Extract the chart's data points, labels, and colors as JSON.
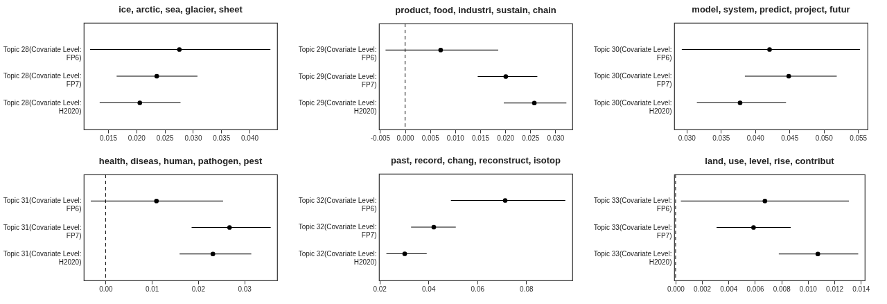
{
  "chart_data": [
    {
      "type": "scatter",
      "orientation": "horizontal",
      "title": "ice, arctic, sea, glacier, sheet",
      "categories": [
        "Topic 28(Covariate Level: FP6)",
        "Topic 28(Covariate Level: FP7)",
        "Topic 28(Covariate Level: H2020)"
      ],
      "values": [
        0.0276,
        0.0236,
        0.0206
      ],
      "errors": [
        [
          0.0118,
          0.0437
        ],
        [
          0.0165,
          0.0308
        ],
        [
          0.0135,
          0.0278
        ]
      ],
      "color": "#000000",
      "marker": "circle",
      "xlim": [
        0.0107,
        0.0449
      ],
      "xticks": [
        0.015,
        {
          "value": 0.02,
          "label": "0.020"
        },
        0.025,
        {
          "value": 0.03,
          "label": "0.030"
        },
        0.035,
        {
          "value": 0.04,
          "label": "0.040"
        }
      ]
    },
    {
      "type": "scatter",
      "orientation": "horizontal",
      "title": "product, food, industri, sustain, chain",
      "categories": [
        "Topic 29(Covariate Level: FP6)",
        "Topic 29(Covariate Level: FP7)",
        "Topic 29(Covariate Level: H2020)"
      ],
      "values": [
        0.0071,
        0.0201,
        0.0258
      ],
      "errors": [
        [
          -0.0039,
          0.0186
        ],
        [
          0.0145,
          0.0264
        ],
        [
          0.0197,
          0.0322
        ]
      ],
      "color": "#000000",
      "marker": "circle",
      "xlim": [
        -0.0052,
        0.0334
      ],
      "xticks": [
        -0.005,
        {
          "value": 0,
          "label": "0.000"
        },
        0.005,
        {
          "value": 0.01,
          "label": "0.010"
        },
        0.015,
        {
          "value": 0.02,
          "label": "0.020"
        },
        0.025,
        {
          "value": 0.03,
          "label": "0.030"
        }
      ],
      "ref_lines": [
        {
          "axis": "x",
          "value": 0,
          "line_style": "dashed"
        }
      ]
    },
    {
      "type": "scatter",
      "orientation": "horizontal",
      "title": "model, system, predict, project, futur",
      "categories": [
        "Topic 30(Covariate Level: FP6)",
        "Topic 30(Covariate Level: FP7)",
        "Topic 30(Covariate Level: H2020)"
      ],
      "values": [
        0.0421,
        0.0449,
        0.0378
      ],
      "errors": [
        [
          0.0293,
          0.0553
        ],
        [
          0.0385,
          0.0519
        ],
        [
          0.0315,
          0.0445
        ]
      ],
      "color": "#000000",
      "marker": "circle",
      "xlim": [
        0.0282,
        0.0564
      ],
      "xticks": [
        {
          "value": 0.03,
          "label": "0.030"
        },
        0.035,
        {
          "value": 0.04,
          "label": "0.040"
        },
        0.045,
        {
          "value": 0.05,
          "label": "0.050"
        },
        0.055
      ]
    },
    {
      "type": "scatter",
      "orientation": "horizontal",
      "title": "health, diseas, human, pathogen, pest",
      "categories": [
        "Topic 31(Covariate Level: FP6)",
        "Topic 31(Covariate Level: FP7)",
        "Topic 31(Covariate Level: H2020)"
      ],
      "values": [
        0.011,
        0.0268,
        0.0232
      ],
      "errors": [
        [
          -0.0032,
          0.0254
        ],
        [
          0.0186,
          0.0357
        ],
        [
          0.016,
          0.0315
        ]
      ],
      "color": "#000000",
      "marker": "circle",
      "xlim": [
        -0.0047,
        0.0371
      ],
      "xticks": [
        {
          "value": 0,
          "label": "0.00"
        },
        0.01,
        0.02,
        0.03
      ],
      "ref_lines": [
        {
          "axis": "x",
          "value": 0,
          "line_style": "dashed"
        }
      ]
    },
    {
      "type": "scatter",
      "orientation": "horizontal",
      "title": "past, record, chang, reconstruct, isotop",
      "categories": [
        "Topic 32(Covariate Level: FP6)",
        "Topic 32(Covariate Level: FP7)",
        "Topic 32(Covariate Level: H2020)"
      ],
      "values": [
        0.0714,
        0.0422,
        0.0303
      ],
      "errors": [
        [
          0.0492,
          0.096
        ],
        [
          0.0329,
          0.0512
        ],
        [
          0.0228,
          0.0393
        ]
      ],
      "color": "#000000",
      "marker": "circle",
      "xlim": [
        0.0198,
        0.0989
      ],
      "xticks": [
        0.02,
        0.04,
        0.06,
        0.08
      ]
    },
    {
      "type": "scatter",
      "orientation": "horizontal",
      "title": "land, use, level, rise, contribut",
      "categories": [
        "Topic 33(Covariate Level: FP6)",
        "Topic 33(Covariate Level: FP7)",
        "Topic 33(Covariate Level: H2020)"
      ],
      "values": [
        0.00675,
        0.00589,
        0.01075
      ],
      "errors": [
        [
          0.0004,
          0.0131
        ],
        [
          0.0031,
          0.0087
        ],
        [
          0.0078,
          0.0138
        ]
      ],
      "color": "#000000",
      "marker": "circle",
      "xlim": [
        -0.0001,
        0.0143
      ],
      "xticks": [
        {
          "value": 0,
          "label": "0.000"
        },
        0.002,
        0.004,
        0.006,
        0.008,
        {
          "value": 0.01,
          "label": "0.010"
        },
        0.012,
        0.014
      ],
      "ref_lines": [
        {
          "axis": "x",
          "value": 0,
          "line_style": "dashed"
        }
      ]
    }
  ]
}
